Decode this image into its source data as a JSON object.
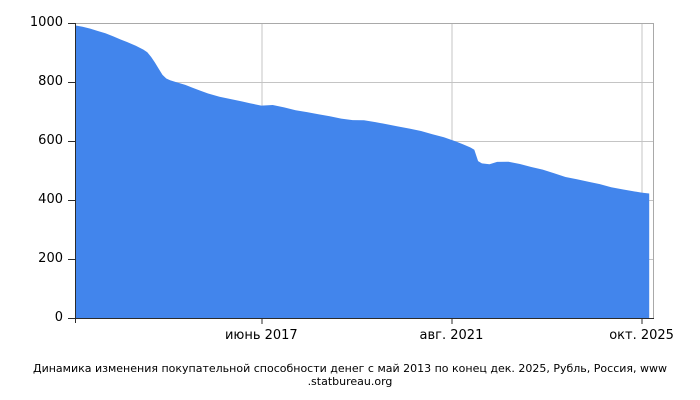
{
  "caption": {
    "line1": "Динамика изменения покупательной способности денег с май 2013 по конец дек. 2025, Рубль, Россия, www",
    "line2": ".statbureau.org"
  },
  "chart_data": {
    "type": "area",
    "title": "Динамика изменения покупательной способности денег с май 2013 по конец дек. 2025, Рубль, Россия, www.statbureau.org",
    "currency": "Рубль",
    "country": "Россия",
    "source": "www.statbureau.org",
    "x_start": "2013-05",
    "x_end": "2025-12",
    "total_months": 152,
    "ylim": [
      0,
      1000
    ],
    "yticks": [
      0,
      200,
      400,
      600,
      800,
      1000
    ],
    "xticks": [
      {
        "label": "июнь 2017",
        "date": "2017-06"
      },
      {
        "label": "авг. 2021",
        "date": "2021-08"
      },
      {
        "label": "окт. 2025",
        "date": "2025-10"
      }
    ],
    "grid": true,
    "legend": "none",
    "colors": {
      "area_fill": "#4285EC",
      "grid": "#C4C4C4",
      "border": "#A9A9A9",
      "axis": "#2B2B2B",
      "text": "#000000",
      "background": "#FFFFFF"
    },
    "points": [
      [
        "2013-05",
        992
      ],
      [
        "2013-07",
        987
      ],
      [
        "2013-09",
        981
      ],
      [
        "2013-11",
        973
      ],
      [
        "2014-01",
        965
      ],
      [
        "2014-03",
        955
      ],
      [
        "2014-05",
        944
      ],
      [
        "2014-07",
        934
      ],
      [
        "2014-09",
        923
      ],
      [
        "2014-11",
        910
      ],
      [
        "2014-12",
        901
      ],
      [
        "2015-01",
        885
      ],
      [
        "2015-02",
        866
      ],
      [
        "2015-03",
        845
      ],
      [
        "2015-04",
        824
      ],
      [
        "2015-05",
        812
      ],
      [
        "2015-06",
        806
      ],
      [
        "2015-08",
        798
      ],
      [
        "2015-10",
        790
      ],
      [
        "2015-12",
        780
      ],
      [
        "2016-02",
        770
      ],
      [
        "2016-04",
        761
      ],
      [
        "2016-07",
        750
      ],
      [
        "2016-10",
        742
      ],
      [
        "2017-01",
        734
      ],
      [
        "2017-03",
        728
      ],
      [
        "2017-06",
        720
      ],
      [
        "2017-09",
        722
      ],
      [
        "2017-12",
        714
      ],
      [
        "2018-03",
        704
      ],
      [
        "2018-06",
        698
      ],
      [
        "2018-09",
        691
      ],
      [
        "2018-12",
        684
      ],
      [
        "2019-03",
        676
      ],
      [
        "2019-06",
        671
      ],
      [
        "2019-09",
        670
      ],
      [
        "2019-12",
        664
      ],
      [
        "2020-03",
        657
      ],
      [
        "2020-06",
        649
      ],
      [
        "2020-09",
        642
      ],
      [
        "2020-12",
        634
      ],
      [
        "2021-03",
        623
      ],
      [
        "2021-06",
        613
      ],
      [
        "2021-09",
        599
      ],
      [
        "2021-11",
        589
      ],
      [
        "2022-01",
        578
      ],
      [
        "2022-02",
        570
      ],
      [
        "2022-03",
        532
      ],
      [
        "2022-04",
        524
      ],
      [
        "2022-06",
        521
      ],
      [
        "2022-08",
        529
      ],
      [
        "2022-11",
        530
      ],
      [
        "2023-02",
        522
      ],
      [
        "2023-05",
        512
      ],
      [
        "2023-08",
        503
      ],
      [
        "2023-11",
        491
      ],
      [
        "2024-02",
        478
      ],
      [
        "2024-05",
        470
      ],
      [
        "2024-08",
        462
      ],
      [
        "2024-11",
        454
      ],
      [
        "2025-02",
        443
      ],
      [
        "2025-05",
        436
      ],
      [
        "2025-08",
        429
      ],
      [
        "2025-10",
        425
      ],
      [
        "2025-12",
        422
      ]
    ]
  }
}
